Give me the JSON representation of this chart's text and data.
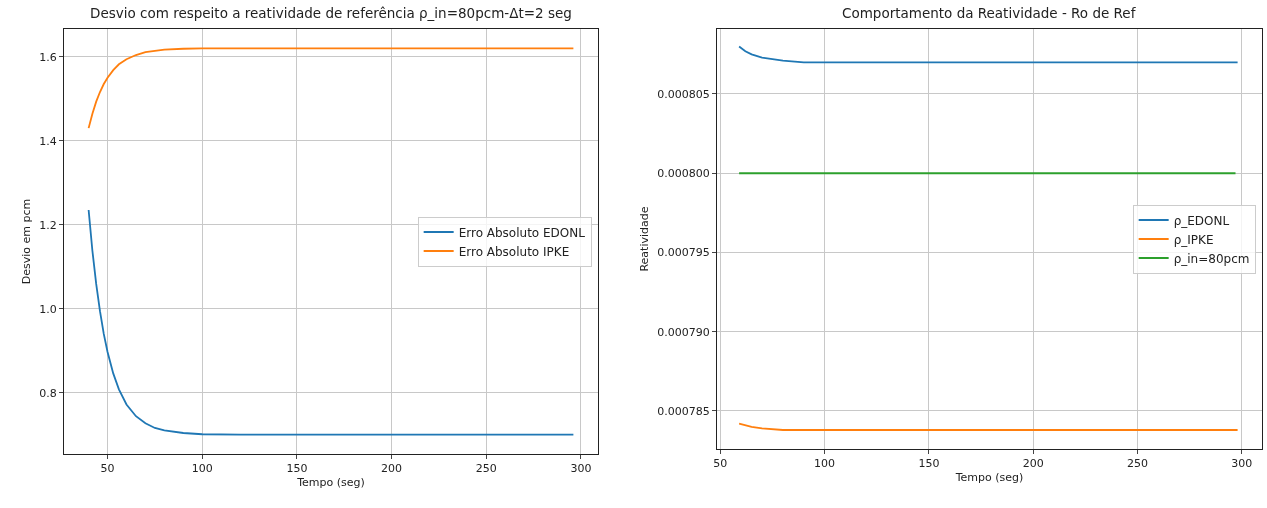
{
  "chart_data": [
    {
      "type": "line",
      "title": "Desvio com respeito a reatividade de referência ρ_in=80pcm-Δt=2 seg",
      "xlabel": "Tempo (seg)",
      "ylabel": "Desvio em pcm",
      "xlim": [
        27,
        309
      ],
      "xticks": [
        50,
        100,
        150,
        200,
        250,
        300
      ],
      "ylim": [
        0.654,
        1.666
      ],
      "yticks": [
        {
          "value": 0.8,
          "label": "0.8"
        },
        {
          "value": 1.0,
          "label": "1.0"
        },
        {
          "value": 1.2,
          "label": "1.2"
        },
        {
          "value": 1.4,
          "label": "1.4"
        },
        {
          "value": 1.6,
          "label": "1.6"
        }
      ],
      "grid": true,
      "legend": "right",
      "marker": "none",
      "line_style": "solid",
      "x": [
        40,
        42,
        44,
        46,
        48,
        50,
        53,
        56,
        60,
        65,
        70,
        75,
        80,
        90,
        100,
        120,
        150,
        200,
        250,
        296
      ],
      "series": [
        {
          "name": "Erro Absoluto EDONL",
          "color": "#1f77b4",
          "values": [
            1.235,
            1.138,
            1.059,
            0.994,
            0.94,
            0.897,
            0.846,
            0.808,
            0.772,
            0.744,
            0.727,
            0.716,
            0.71,
            0.704,
            0.701,
            0.7,
            0.7,
            0.7,
            0.7,
            0.7
          ]
        },
        {
          "name": "Erro Absoluto IPKE",
          "color": "#ff7f0e",
          "values": [
            1.43,
            1.464,
            1.493,
            1.516,
            1.535,
            1.55,
            1.568,
            1.582,
            1.594,
            1.604,
            1.611,
            1.614,
            1.617,
            1.619,
            1.62,
            1.62,
            1.62,
            1.62,
            1.62,
            1.62
          ]
        }
      ]
    },
    {
      "type": "line",
      "title": "Comportamento da Reatividade - Ro de Ref",
      "xlabel": "Tempo (seg)",
      "ylabel": "Reatividade",
      "xlim": [
        48.4,
        309.7
      ],
      "xticks": [
        50,
        100,
        150,
        200,
        250,
        300
      ],
      "ylim": [
        0.0007826,
        0.0008091
      ],
      "yticks": [
        {
          "value": 0.000785,
          "label": "0.000785"
        },
        {
          "value": 0.00079,
          "label": "0.000790"
        },
        {
          "value": 0.000795,
          "label": "0.000795"
        },
        {
          "value": 0.0008,
          "label": "0.000800"
        },
        {
          "value": 0.000805,
          "label": "0.000805"
        }
      ],
      "grid": true,
      "legend": "right",
      "marker": "none",
      "line_style": "solid",
      "series": [
        {
          "name": "ρ_EDONL",
          "color": "#1f77b4",
          "x": [
            59,
            62,
            65,
            70,
            75,
            80,
            90,
            100,
            150,
            200,
            250,
            298
          ],
          "values": [
            0.000808,
            0.0008077,
            0.0008075,
            0.0008073,
            0.0008072,
            0.0008071,
            0.000807,
            0.000807,
            0.000807,
            0.000807,
            0.000807,
            0.000807
          ]
        },
        {
          "name": "ρ_IPKE",
          "color": "#ff7f0e",
          "x": [
            59,
            65,
            70,
            80,
            100,
            150,
            200,
            250,
            298
          ],
          "values": [
            0.0007842,
            0.000784,
            0.0007839,
            0.0007838,
            0.0007838,
            0.0007838,
            0.0007838,
            0.0007838,
            0.0007838
          ]
        },
        {
          "name": "ρ_in=80pcm",
          "color": "#2ca02c",
          "x": [
            59,
            297
          ],
          "values": [
            0.0008,
            0.0008
          ]
        }
      ]
    }
  ]
}
